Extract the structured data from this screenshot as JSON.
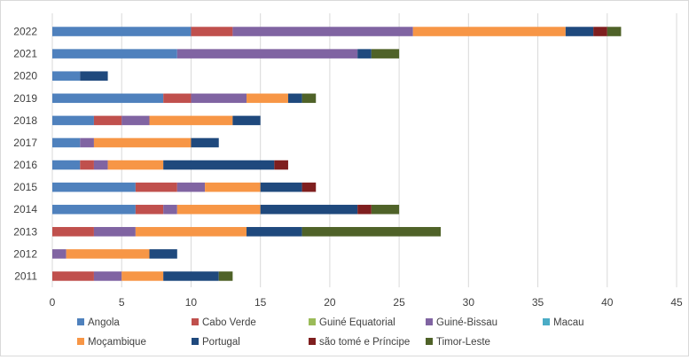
{
  "chart_data": {
    "type": "bar",
    "orientation": "horizontal",
    "stacked": true,
    "categories": [
      "2011",
      "2012",
      "2013",
      "2014",
      "2015",
      "2016",
      "2017",
      "2018",
      "2019",
      "2020",
      "2021",
      "2022"
    ],
    "xlim": [
      0,
      45
    ],
    "xticks": [
      0,
      5,
      10,
      15,
      20,
      25,
      30,
      35,
      40,
      45
    ],
    "grid": true,
    "legend_position": "bottom",
    "series": [
      {
        "name": "Angola",
        "color": "#4f81bd",
        "values": [
          0,
          0,
          0,
          6,
          6,
          2,
          2,
          3,
          8,
          2,
          9,
          10
        ]
      },
      {
        "name": "Cabo Verde",
        "color": "#c0504d",
        "values": [
          3,
          0,
          3,
          2,
          3,
          1,
          0,
          2,
          2,
          0,
          0,
          3
        ]
      },
      {
        "name": "Guiné Equatorial",
        "color": "#9bbb59",
        "values": [
          0,
          0,
          0,
          0,
          0,
          0,
          0,
          0,
          0,
          0,
          0,
          0
        ]
      },
      {
        "name": "Guiné-Bissau",
        "color": "#8064a2",
        "values": [
          2,
          1,
          3,
          1,
          2,
          1,
          1,
          2,
          4,
          0,
          13,
          13
        ]
      },
      {
        "name": "Macau",
        "color": "#4bacc6",
        "values": [
          0,
          0,
          0,
          0,
          0,
          0,
          0,
          0,
          0,
          0,
          0,
          0
        ]
      },
      {
        "name": "Moçambique",
        "color": "#f79646",
        "values": [
          3,
          6,
          8,
          6,
          4,
          4,
          7,
          6,
          3,
          0,
          0,
          11
        ]
      },
      {
        "name": "Portugal",
        "color": "#1f497d",
        "values": [
          4,
          2,
          4,
          7,
          3,
          8,
          2,
          2,
          1,
          2,
          1,
          2
        ]
      },
      {
        "name": "são tomé e Príncipe",
        "color": "#7f1f1f",
        "values": [
          0,
          0,
          0,
          1,
          1,
          1,
          0,
          0,
          0,
          0,
          0,
          1
        ]
      },
      {
        "name": "Timor-Leste",
        "color": "#4f6228",
        "values": [
          1,
          0,
          10,
          2,
          0,
          0,
          0,
          0,
          1,
          0,
          2,
          1
        ]
      }
    ]
  }
}
